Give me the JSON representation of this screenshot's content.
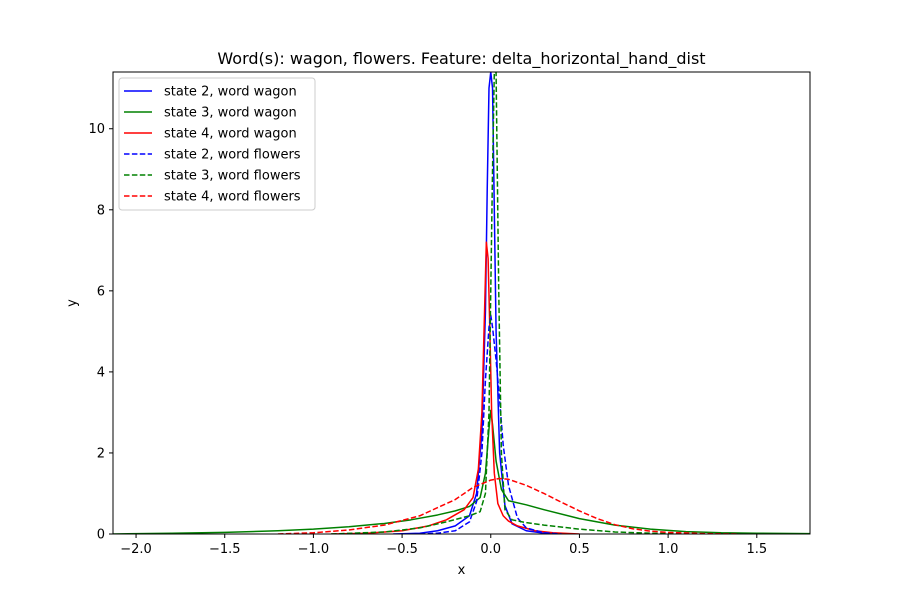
{
  "chart_data": {
    "type": "line",
    "title": "Word(s): wagon, flowers. Feature: delta_horizontal_hand_dist",
    "xlabel": "x",
    "ylabel": "y",
    "xlim": [
      -2.13,
      1.8
    ],
    "ylim": [
      0,
      11.4
    ],
    "xticks": [
      -2.0,
      -1.5,
      -1.0,
      -0.5,
      0.0,
      0.5,
      1.0,
      1.5
    ],
    "xtick_labels": [
      "−2.0",
      "−1.5",
      "−1.0",
      "−0.5",
      "0.0",
      "0.5",
      "1.0",
      "1.5"
    ],
    "yticks": [
      0,
      2,
      4,
      6,
      8,
      10
    ],
    "ytick_labels": [
      "0",
      "2",
      "4",
      "6",
      "8",
      "10"
    ],
    "grid": false,
    "legend_position": "top-left",
    "series": [
      {
        "name": "state 2, word wagon",
        "color": "#0000ff",
        "dash": "solid",
        "x": [
          -0.55,
          -0.4,
          -0.3,
          -0.2,
          -0.12,
          -0.08,
          -0.05,
          -0.03,
          -0.02,
          -0.01,
          0.0,
          0.01,
          0.02,
          0.03,
          0.05,
          0.08,
          0.12,
          0.2,
          0.3,
          0.4
        ],
        "y": [
          0.0,
          0.02,
          0.08,
          0.2,
          0.45,
          1.0,
          2.5,
          5.5,
          8.5,
          11.0,
          11.4,
          11.0,
          8.0,
          5.0,
          2.0,
          0.7,
          0.25,
          0.08,
          0.02,
          0.0
        ]
      },
      {
        "name": "state 3, word wagon",
        "color": "#008000",
        "dash": "solid",
        "x": [
          -2.13,
          -1.8,
          -1.5,
          -1.2,
          -1.0,
          -0.8,
          -0.6,
          -0.45,
          -0.3,
          -0.2,
          -0.12,
          -0.06,
          -0.03,
          -0.01,
          0.0,
          0.01,
          0.03,
          0.06,
          0.1,
          0.2,
          0.3,
          0.5,
          0.7,
          0.9,
          1.1,
          1.3,
          1.5,
          1.8
        ],
        "y": [
          0.0,
          0.02,
          0.04,
          0.08,
          0.12,
          0.18,
          0.26,
          0.35,
          0.47,
          0.57,
          0.68,
          0.9,
          1.5,
          2.6,
          3.05,
          2.7,
          1.8,
          1.1,
          0.82,
          0.72,
          0.6,
          0.38,
          0.22,
          0.12,
          0.06,
          0.03,
          0.02,
          0.01
        ]
      },
      {
        "name": "state 4, word wagon",
        "color": "#ff0000",
        "dash": "solid",
        "x": [
          -0.9,
          -0.7,
          -0.5,
          -0.35,
          -0.25,
          -0.15,
          -0.1,
          -0.07,
          -0.05,
          -0.035,
          -0.025,
          -0.015,
          -0.005,
          0.005,
          0.02,
          0.04,
          0.07,
          0.1,
          0.15,
          0.25,
          0.35,
          0.5
        ],
        "y": [
          0.0,
          0.02,
          0.08,
          0.2,
          0.35,
          0.6,
          0.9,
          1.6,
          3.0,
          5.5,
          7.2,
          6.8,
          5.0,
          3.0,
          1.5,
          0.75,
          0.45,
          0.32,
          0.2,
          0.08,
          0.03,
          0.0
        ]
      },
      {
        "name": "state 2, word flowers",
        "color": "#0000ff",
        "dash": "dashed",
        "x": [
          -0.4,
          -0.3,
          -0.2,
          -0.12,
          -0.08,
          -0.05,
          -0.03,
          -0.01,
          0.0,
          0.01,
          0.03,
          0.05,
          0.07,
          0.1,
          0.15,
          0.2,
          0.3,
          0.4
        ],
        "y": [
          0.0,
          0.02,
          0.08,
          0.3,
          0.8,
          2.0,
          3.8,
          5.1,
          5.4,
          5.1,
          4.3,
          3.3,
          2.2,
          1.2,
          0.4,
          0.15,
          0.03,
          0.0
        ]
      },
      {
        "name": "state 3, word flowers",
        "color": "#008000",
        "dash": "dashed",
        "x": [
          -0.9,
          -0.6,
          -0.4,
          -0.25,
          -0.12,
          -0.06,
          -0.03,
          -0.01,
          0.0,
          0.01,
          0.02,
          0.03,
          0.045,
          0.06,
          0.08,
          0.12,
          0.2,
          0.3,
          0.5,
          0.7,
          0.9,
          1.1
        ],
        "y": [
          0.0,
          0.05,
          0.15,
          0.3,
          0.45,
          0.55,
          1.0,
          3.0,
          6.0,
          9.0,
          11.4,
          11.4,
          6.0,
          2.0,
          0.6,
          0.35,
          0.28,
          0.22,
          0.12,
          0.05,
          0.02,
          0.0
        ]
      },
      {
        "name": "state 4, word flowers",
        "color": "#ff0000",
        "dash": "dashed",
        "x": [
          -1.2,
          -1.0,
          -0.8,
          -0.6,
          -0.4,
          -0.2,
          -0.1,
          0.0,
          0.05,
          0.1,
          0.2,
          0.3,
          0.4,
          0.5,
          0.6,
          0.7,
          0.8,
          0.9,
          1.0,
          1.2,
          1.4
        ],
        "y": [
          0.0,
          0.03,
          0.1,
          0.22,
          0.45,
          0.85,
          1.15,
          1.33,
          1.37,
          1.35,
          1.2,
          1.0,
          0.78,
          0.57,
          0.38,
          0.23,
          0.13,
          0.07,
          0.04,
          0.01,
          0.0
        ]
      }
    ]
  }
}
